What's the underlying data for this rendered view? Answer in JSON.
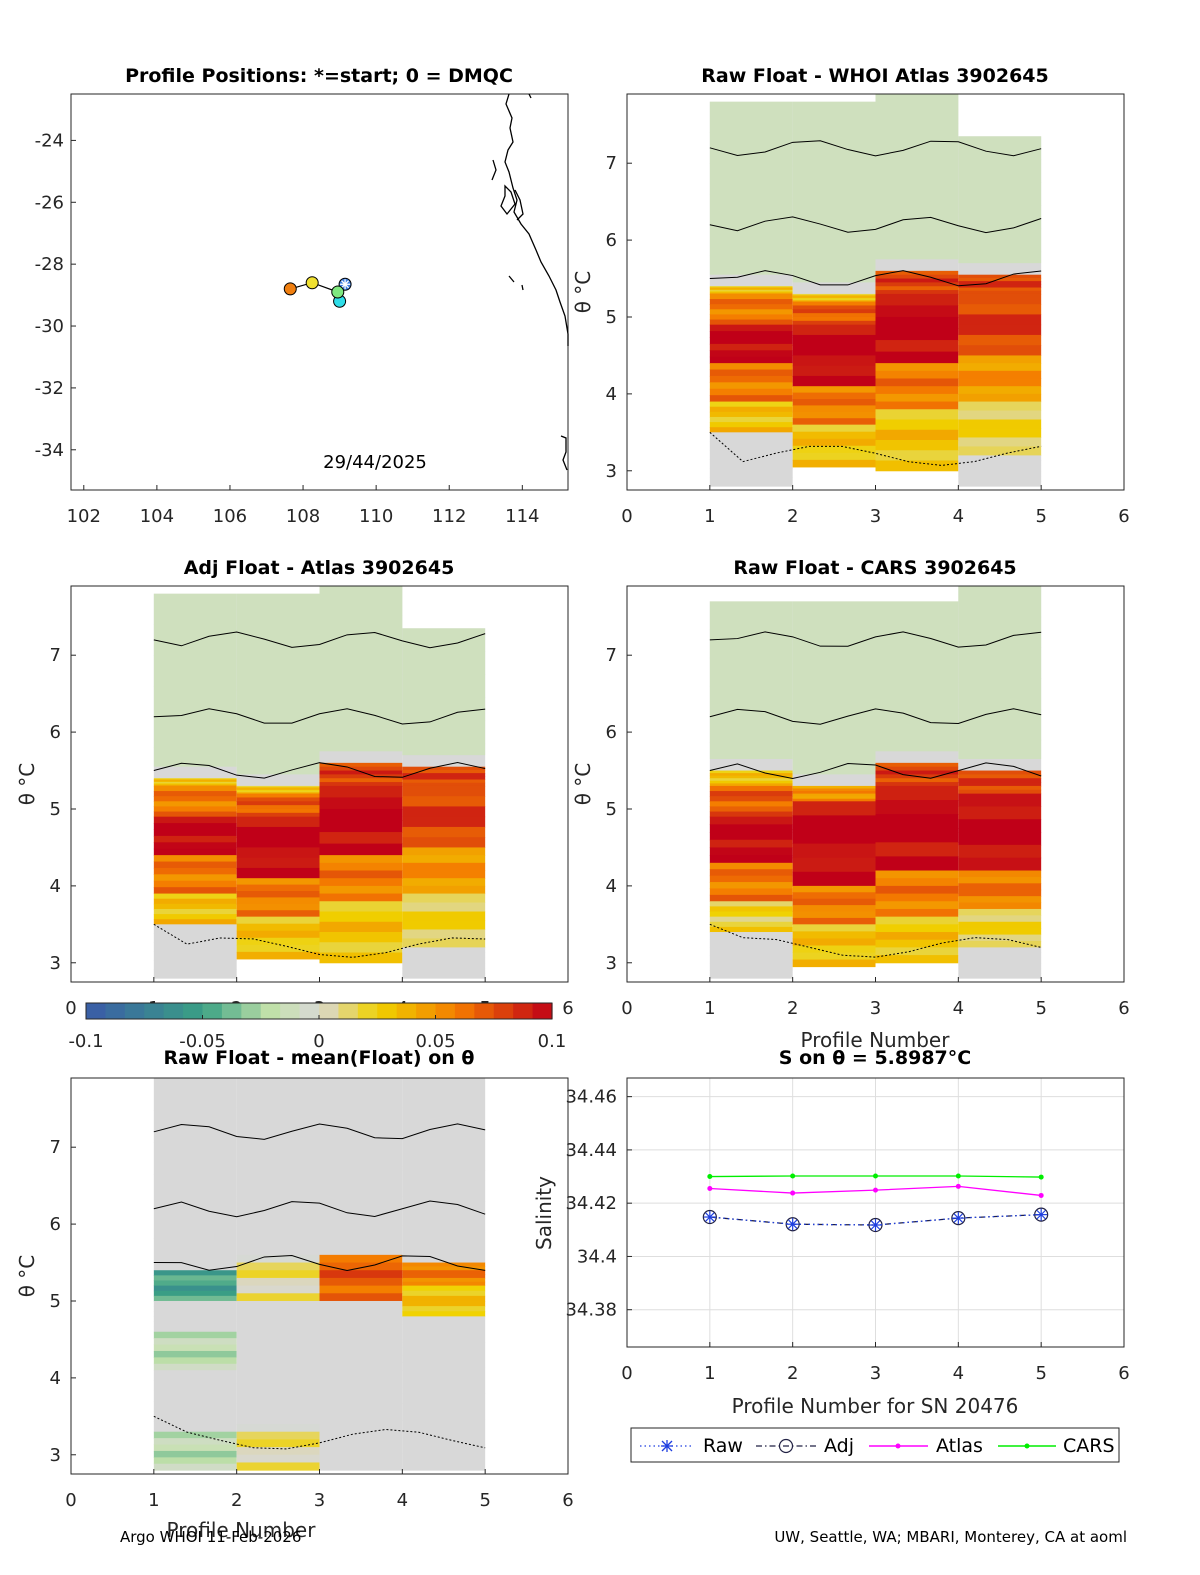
{
  "colors": {
    "neg_strong": "#3a5aa8",
    "neg_mid": "#3aa184",
    "neutral": "#d8d8d8",
    "pos_mid": "#f0d200",
    "pos_high": "#f47a00",
    "pos_strong": "#c00018",
    "raw": "#1f3fe0",
    "adj": "#222244",
    "atlas": "#ff00ff",
    "cars": "#00ee00",
    "coast": "#000000"
  },
  "footer": {
    "left": "Argo WHOI 11-Feb-2026",
    "right": "UW, Seattle, WA; MBARI, Monterey, CA at aoml"
  },
  "map": {
    "title": "Profile Positions: *=start; 0 = DMQC",
    "date_label": "29/44/2025",
    "xticks": [
      "102",
      "104",
      "106",
      "108",
      "110",
      "112",
      "114"
    ],
    "yticks": [
      "-24",
      "-26",
      "-28",
      "-30",
      "-32",
      "-34"
    ],
    "positions": [
      {
        "lon": 109.15,
        "lat": -28.65,
        "color": "#3f7fe0",
        "start": true
      },
      {
        "lon": 109.0,
        "lat": -29.2,
        "color": "#2fdde8"
      },
      {
        "lon": 108.95,
        "lat": -28.9,
        "color": "#7fe87f"
      },
      {
        "lon": 108.25,
        "lat": -28.6,
        "color": "#f0e030"
      },
      {
        "lon": 107.65,
        "lat": -28.8,
        "color": "#f07f10"
      }
    ]
  },
  "panel_common": {
    "ylabel": "θ °C",
    "xticks": [
      "0",
      "1",
      "2",
      "3",
      "4",
      "5",
      "6"
    ],
    "yticks": [
      "3",
      "4",
      "5",
      "6",
      "7"
    ]
  },
  "colorbar": {
    "ticks": [
      "-0.1",
      "-0.05",
      "0",
      "0.05",
      "0.1"
    ]
  },
  "salinity_panel": {
    "title": "S on θ = 5.8987°C",
    "ylabel": "Salinity",
    "xlabel": "Profile Number for SN 20476",
    "xticks": [
      "0",
      "1",
      "2",
      "3",
      "4",
      "5",
      "6"
    ],
    "yticks": [
      "34.38",
      "34.4",
      "34.42",
      "34.44",
      "34.46"
    ]
  },
  "legend": {
    "raw": "Raw",
    "adj": "Adj",
    "atlas": "Atlas",
    "cars": "CARS"
  },
  "chart_data": [
    {
      "type": "heatmap",
      "title": "Raw Float - WHOI Atlas  3902645",
      "xlabel": "",
      "ylabel": "θ °C",
      "xlim": [
        0,
        6
      ],
      "ylim": [
        2.75,
        7.9
      ],
      "colorbar_range": [
        -0.1,
        0.1
      ],
      "profiles": [
        {
          "x": 1,
          "theta_top": 7.8,
          "theta_bot": 2.8,
          "bands": [
            {
              "lo": 5.4,
              "hi": 7.8,
              "v": 0.0
            },
            {
              "lo": 5.3,
              "hi": 5.4,
              "v": 0.03
            },
            {
              "lo": 4.9,
              "hi": 5.3,
              "v": 0.06
            },
            {
              "lo": 4.4,
              "hi": 4.9,
              "v": 0.1
            },
            {
              "lo": 3.9,
              "hi": 4.4,
              "v": 0.06
            },
            {
              "lo": 3.5,
              "hi": 3.9,
              "v": 0.03
            },
            {
              "lo": 2.8,
              "hi": 3.5,
              "v": 0.0
            }
          ]
        },
        {
          "x": 2,
          "theta_top": 7.8,
          "theta_bot": 3.05,
          "bands": [
            {
              "lo": 5.3,
              "hi": 7.8,
              "v": 0.0
            },
            {
              "lo": 5.2,
              "hi": 5.3,
              "v": 0.03
            },
            {
              "lo": 4.9,
              "hi": 5.2,
              "v": 0.07
            },
            {
              "lo": 4.1,
              "hi": 4.9,
              "v": 0.1
            },
            {
              "lo": 3.6,
              "hi": 4.1,
              "v": 0.06
            },
            {
              "lo": 3.05,
              "hi": 3.6,
              "v": 0.03
            }
          ]
        },
        {
          "x": 3,
          "theta_top": 7.95,
          "theta_bot": 3.0,
          "bands": [
            {
              "lo": 5.6,
              "hi": 7.95,
              "v": 0.0
            },
            {
              "lo": 5.3,
              "hi": 5.6,
              "v": 0.08
            },
            {
              "lo": 4.4,
              "hi": 5.3,
              "v": 0.1
            },
            {
              "lo": 3.8,
              "hi": 4.4,
              "v": 0.06
            },
            {
              "lo": 3.0,
              "hi": 3.8,
              "v": 0.03
            }
          ]
        },
        {
          "x": 4,
          "theta_top": 7.35,
          "theta_bot": 2.8,
          "bands": [
            {
              "lo": 5.55,
              "hi": 7.35,
              "v": 0.0
            },
            {
              "lo": 5.3,
              "hi": 5.55,
              "v": 0.08
            },
            {
              "lo": 4.5,
              "hi": 5.3,
              "v": 0.08
            },
            {
              "lo": 3.9,
              "hi": 4.5,
              "v": 0.05
            },
            {
              "lo": 3.2,
              "hi": 3.9,
              "v": 0.02
            },
            {
              "lo": 2.8,
              "hi": 3.2,
              "v": 0.0
            }
          ]
        }
      ]
    },
    {
      "type": "heatmap",
      "title": "Adj Float - Atlas  3902645",
      "xlabel": "",
      "ylabel": "θ °C",
      "xlim": [
        0,
        6
      ],
      "ylim": [
        2.75,
        7.9
      ],
      "colorbar_range": [
        -0.1,
        0.1
      ],
      "profiles": [
        {
          "x": 1,
          "theta_top": 7.8,
          "theta_bot": 2.8,
          "bands": [
            {
              "lo": 5.4,
              "hi": 7.8,
              "v": 0.0
            },
            {
              "lo": 5.3,
              "hi": 5.4,
              "v": 0.03
            },
            {
              "lo": 4.9,
              "hi": 5.3,
              "v": 0.06
            },
            {
              "lo": 4.4,
              "hi": 4.9,
              "v": 0.1
            },
            {
              "lo": 3.9,
              "hi": 4.4,
              "v": 0.06
            },
            {
              "lo": 3.5,
              "hi": 3.9,
              "v": 0.03
            },
            {
              "lo": 2.8,
              "hi": 3.5,
              "v": 0.0
            }
          ]
        },
        {
          "x": 2,
          "theta_top": 7.8,
          "theta_bot": 3.05,
          "bands": [
            {
              "lo": 5.3,
              "hi": 7.8,
              "v": 0.0
            },
            {
              "lo": 5.2,
              "hi": 5.3,
              "v": 0.03
            },
            {
              "lo": 4.9,
              "hi": 5.2,
              "v": 0.07
            },
            {
              "lo": 4.1,
              "hi": 4.9,
              "v": 0.1
            },
            {
              "lo": 3.6,
              "hi": 4.1,
              "v": 0.06
            },
            {
              "lo": 3.05,
              "hi": 3.6,
              "v": 0.03
            }
          ]
        },
        {
          "x": 3,
          "theta_top": 7.95,
          "theta_bot": 3.0,
          "bands": [
            {
              "lo": 5.6,
              "hi": 7.95,
              "v": 0.0
            },
            {
              "lo": 5.3,
              "hi": 5.6,
              "v": 0.08
            },
            {
              "lo": 4.4,
              "hi": 5.3,
              "v": 0.1
            },
            {
              "lo": 3.8,
              "hi": 4.4,
              "v": 0.06
            },
            {
              "lo": 3.0,
              "hi": 3.8,
              "v": 0.03
            }
          ]
        },
        {
          "x": 4,
          "theta_top": 7.35,
          "theta_bot": 2.8,
          "bands": [
            {
              "lo": 5.55,
              "hi": 7.35,
              "v": 0.0
            },
            {
              "lo": 5.3,
              "hi": 5.55,
              "v": 0.08
            },
            {
              "lo": 4.5,
              "hi": 5.3,
              "v": 0.08
            },
            {
              "lo": 3.9,
              "hi": 4.5,
              "v": 0.05
            },
            {
              "lo": 3.2,
              "hi": 3.9,
              "v": 0.02
            },
            {
              "lo": 2.8,
              "hi": 3.2,
              "v": 0.0
            }
          ]
        }
      ]
    },
    {
      "type": "heatmap",
      "title": "Raw Float - CARS  3902645",
      "xlabel": "Profile Number",
      "ylabel": "θ °C",
      "xlim": [
        0,
        6
      ],
      "ylim": [
        2.75,
        7.9
      ],
      "colorbar_range": [
        -0.1,
        0.1
      ],
      "profiles": [
        {
          "x": 1,
          "theta_top": 7.7,
          "theta_bot": 2.8,
          "bands": [
            {
              "lo": 5.5,
              "hi": 7.7,
              "v": 0.0
            },
            {
              "lo": 5.3,
              "hi": 5.5,
              "v": 0.03
            },
            {
              "lo": 4.9,
              "hi": 5.3,
              "v": 0.07
            },
            {
              "lo": 4.3,
              "hi": 4.9,
              "v": 0.1
            },
            {
              "lo": 3.8,
              "hi": 4.3,
              "v": 0.06
            },
            {
              "lo": 3.4,
              "hi": 3.8,
              "v": 0.02
            },
            {
              "lo": 2.8,
              "hi": 3.4,
              "v": 0.0
            }
          ]
        },
        {
          "x": 2,
          "theta_top": 7.7,
          "theta_bot": 2.95,
          "bands": [
            {
              "lo": 5.3,
              "hi": 7.7,
              "v": 0.0
            },
            {
              "lo": 5.1,
              "hi": 5.3,
              "v": 0.05
            },
            {
              "lo": 4.0,
              "hi": 5.1,
              "v": 0.1
            },
            {
              "lo": 3.5,
              "hi": 4.0,
              "v": 0.06
            },
            {
              "lo": 2.95,
              "hi": 3.5,
              "v": 0.03
            }
          ]
        },
        {
          "x": 3,
          "theta_top": 7.7,
          "theta_bot": 3.0,
          "bands": [
            {
              "lo": 5.6,
              "hi": 7.7,
              "v": 0.0
            },
            {
              "lo": 5.3,
              "hi": 5.6,
              "v": 0.08
            },
            {
              "lo": 4.2,
              "hi": 5.3,
              "v": 0.1
            },
            {
              "lo": 3.6,
              "hi": 4.2,
              "v": 0.06
            },
            {
              "lo": 3.0,
              "hi": 3.6,
              "v": 0.03
            }
          ]
        },
        {
          "x": 4,
          "theta_top": 7.9,
          "theta_bot": 2.8,
          "bands": [
            {
              "lo": 5.5,
              "hi": 7.9,
              "v": 0.0
            },
            {
              "lo": 5.2,
              "hi": 5.5,
              "v": 0.08
            },
            {
              "lo": 4.2,
              "hi": 5.2,
              "v": 0.1
            },
            {
              "lo": 3.7,
              "hi": 4.2,
              "v": 0.06
            },
            {
              "lo": 3.2,
              "hi": 3.7,
              "v": 0.02
            },
            {
              "lo": 2.8,
              "hi": 3.2,
              "v": 0.0
            }
          ]
        }
      ]
    },
    {
      "type": "heatmap",
      "title": "Raw Float - mean(Float) on θ",
      "xlabel": "Profile Number",
      "ylabel": "θ °C",
      "xlim": [
        0,
        6
      ],
      "ylim": [
        2.75,
        7.9
      ],
      "colorbar_range": [
        -0.1,
        0.1
      ],
      "profiles": [
        {
          "x": 1,
          "theta_top": 7.95,
          "theta_bot": 2.8,
          "bands": [
            {
              "lo": 5.4,
              "hi": 7.95,
              "v": 0.0
            },
            {
              "lo": 5.0,
              "hi": 5.4,
              "v": -0.05
            },
            {
              "lo": 4.6,
              "hi": 5.0,
              "v": 0.0
            },
            {
              "lo": 4.1,
              "hi": 4.6,
              "v": -0.02
            },
            {
              "lo": 3.3,
              "hi": 4.1,
              "v": 0.0
            },
            {
              "lo": 2.8,
              "hi": 3.3,
              "v": -0.02
            }
          ]
        },
        {
          "x": 2,
          "theta_top": 7.95,
          "theta_bot": 2.8,
          "bands": [
            {
              "lo": 5.6,
              "hi": 7.95,
              "v": 0.0
            },
            {
              "lo": 5.0,
              "hi": 5.6,
              "v": 0.01
            },
            {
              "lo": 3.4,
              "hi": 5.0,
              "v": 0.0
            },
            {
              "lo": 2.8,
              "hi": 3.4,
              "v": 0.01
            }
          ]
        },
        {
          "x": 3,
          "theta_top": 7.95,
          "theta_bot": 2.8,
          "bands": [
            {
              "lo": 5.6,
              "hi": 7.95,
              "v": 0.0
            },
            {
              "lo": 5.0,
              "hi": 5.6,
              "v": 0.07
            },
            {
              "lo": 4.7,
              "hi": 5.0,
              "v": 0.0
            },
            {
              "lo": 4.1,
              "hi": 4.7,
              "v": 0.0
            },
            {
              "lo": 2.8,
              "hi": 4.1,
              "v": 0.0
            }
          ]
        },
        {
          "x": 4,
          "theta_top": 7.95,
          "theta_bot": 2.8,
          "bands": [
            {
              "lo": 5.5,
              "hi": 7.95,
              "v": 0.0
            },
            {
              "lo": 5.2,
              "hi": 5.5,
              "v": 0.06
            },
            {
              "lo": 4.8,
              "hi": 5.2,
              "v": 0.03
            },
            {
              "lo": 2.8,
              "hi": 4.8,
              "v": 0.0
            }
          ]
        }
      ]
    },
    {
      "type": "line",
      "title": "S on θ = 5.8987°C",
      "xlabel": "Profile Number for SN 20476",
      "ylabel": "Salinity",
      "xlim": [
        0,
        6
      ],
      "ylim": [
        34.366,
        34.467
      ],
      "grid": true,
      "legend_position": "bottom",
      "x": [
        1,
        2,
        3,
        4,
        5
      ],
      "series": [
        {
          "name": "Raw",
          "values": [
            34.4148,
            34.4121,
            34.4118,
            34.4144,
            34.4157
          ]
        },
        {
          "name": "Adj",
          "values": [
            34.4148,
            34.4121,
            34.4118,
            34.4144,
            34.4157
          ]
        },
        {
          "name": "Atlas",
          "values": [
            34.4255,
            34.4238,
            34.4249,
            34.4263,
            34.4229
          ]
        },
        {
          "name": "CARS",
          "values": [
            34.43,
            34.4302,
            34.4302,
            34.4302,
            34.4298
          ]
        }
      ]
    }
  ]
}
